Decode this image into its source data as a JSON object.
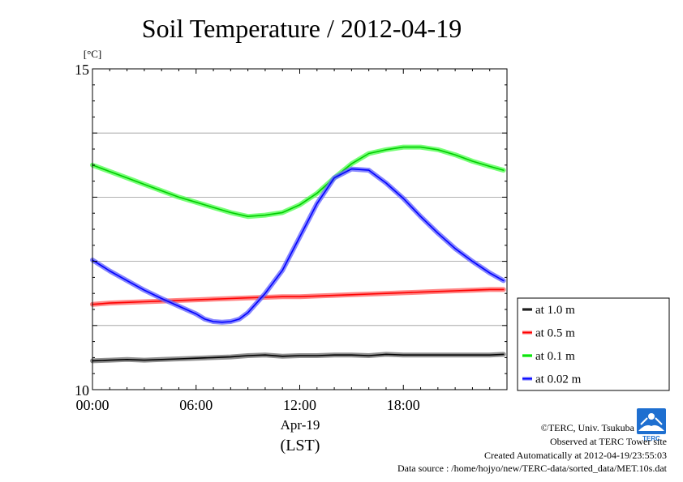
{
  "chart_data": {
    "type": "line",
    "title": "Soil Temperature / 2012-04-19",
    "ylabel": "[°C]",
    "ylim": [
      10,
      15
    ],
    "y_ticks": [
      10,
      15
    ],
    "y_grid": [
      11,
      12,
      13,
      14
    ],
    "xlim": [
      0,
      24
    ],
    "x_ticks": [
      {
        "x": 0,
        "label": "00:00"
      },
      {
        "x": 6,
        "label": "06:00"
      },
      {
        "x": 12,
        "label": "12:00"
      },
      {
        "x": 18,
        "label": "18:00"
      }
    ],
    "x_sublabel": "Apr-19",
    "xlabel": "(LST)",
    "legend_position": "right",
    "series": [
      {
        "name": "at 1.0 m",
        "color": "#000000",
        "band_color": "#777777",
        "x": [
          0,
          1,
          2,
          3,
          4,
          5,
          6,
          7,
          8,
          9,
          10,
          11,
          12,
          13,
          14,
          15,
          16,
          17,
          18,
          19,
          20,
          21,
          22,
          23,
          23.8
        ],
        "y": [
          10.45,
          10.46,
          10.47,
          10.46,
          10.47,
          10.48,
          10.49,
          10.5,
          10.51,
          10.53,
          10.54,
          10.52,
          10.53,
          10.53,
          10.54,
          10.54,
          10.53,
          10.55,
          10.54,
          10.54,
          10.54,
          10.54,
          10.54,
          10.54,
          10.55
        ]
      },
      {
        "name": "at 0.5 m",
        "color": "#ff0000",
        "band_color": "#ff6666",
        "x": [
          0,
          1,
          2,
          3,
          4,
          5,
          6,
          7,
          8,
          9,
          10,
          11,
          12,
          13,
          14,
          15,
          16,
          17,
          18,
          19,
          20,
          21,
          22,
          23,
          23.8
        ],
        "y": [
          11.33,
          11.35,
          11.36,
          11.37,
          11.38,
          11.39,
          11.4,
          11.41,
          11.42,
          11.43,
          11.44,
          11.45,
          11.45,
          11.46,
          11.47,
          11.48,
          11.49,
          11.5,
          11.51,
          11.52,
          11.53,
          11.54,
          11.55,
          11.56,
          11.56
        ]
      },
      {
        "name": "at 0.1 m",
        "color": "#00cc00",
        "band_color": "#55ff55",
        "x": [
          0,
          1,
          2,
          3,
          4,
          5,
          6,
          7,
          8,
          9,
          10,
          11,
          12,
          13,
          14,
          15,
          16,
          17,
          18,
          19,
          20,
          21,
          22,
          23,
          23.8
        ],
        "y": [
          13.5,
          13.4,
          13.3,
          13.2,
          13.1,
          13.0,
          12.92,
          12.84,
          12.76,
          12.7,
          12.72,
          12.76,
          12.88,
          13.06,
          13.3,
          13.52,
          13.68,
          13.74,
          13.78,
          13.78,
          13.74,
          13.66,
          13.56,
          13.48,
          13.42
        ]
      },
      {
        "name": "at 0.02 m",
        "color": "#0000ff",
        "band_color": "#6666ff",
        "x": [
          0,
          1,
          2,
          3,
          4,
          5,
          6,
          6.5,
          7,
          7.5,
          8,
          8.5,
          9,
          10,
          11,
          12,
          13,
          14,
          15,
          16,
          17,
          18,
          19,
          20,
          21,
          22,
          23,
          23.8
        ],
        "y": [
          12.02,
          11.85,
          11.7,
          11.55,
          11.42,
          11.3,
          11.18,
          11.1,
          11.06,
          11.05,
          11.06,
          11.1,
          11.2,
          11.5,
          11.86,
          12.38,
          12.9,
          13.3,
          13.44,
          13.42,
          13.22,
          12.98,
          12.7,
          12.44,
          12.2,
          12.0,
          11.82,
          11.7
        ]
      }
    ]
  },
  "footer": {
    "copyright": "©TERC, Univ. Tsukuba",
    "site": "Observed at TERC Tower site",
    "created": "Created Automatically at 2012-04-19/23:55:03",
    "source": "Data source : /home/hojyo/new/TERC-data/sorted_data/MET.10s.dat"
  },
  "logo": {
    "icon": "terc-logo-icon",
    "text": "TERC",
    "color": "#1e6fd0"
  }
}
